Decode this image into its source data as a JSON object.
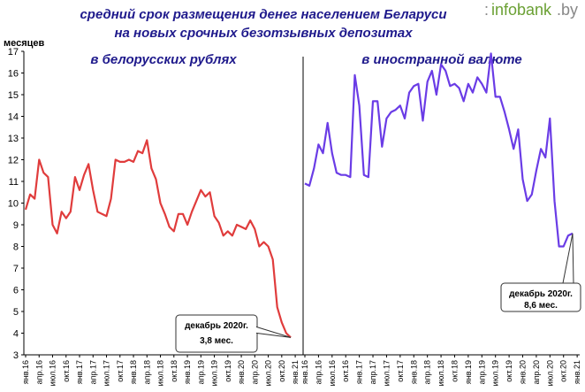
{
  "logo": {
    "name": "infobank",
    "suffix": ".by"
  },
  "title_line1": "средний срок размещения денег населением Беларуси",
  "title_line2": "на новых срочных безотзывных депозитах",
  "chart_data": {
    "type": "line",
    "ylabel": "месяцев",
    "ylim": [
      3,
      17
    ],
    "yticks": [
      3,
      4,
      5,
      6,
      7,
      8,
      9,
      10,
      11,
      12,
      13,
      14,
      15,
      16,
      17
    ],
    "x_tick_labels": [
      "янв.16",
      "апр.16",
      "июл.16",
      "окт.16",
      "янв.17",
      "апр.17",
      "июл.17",
      "окт.17",
      "янв.18",
      "апр.18",
      "июл.18",
      "окт.18",
      "янв.19",
      "апр.19",
      "июл.19",
      "окт.19",
      "янв.20",
      "апр.20",
      "июл.20",
      "окт.20",
      "янв.21"
    ],
    "x_start": "2016-01",
    "x_end": "2020-12",
    "series": [
      {
        "name": "в белорусских рублях",
        "color": "#e03c3c",
        "values": [
          9.7,
          10.4,
          10.2,
          12.0,
          11.4,
          11.2,
          9.0,
          8.6,
          9.6,
          9.3,
          9.6,
          11.2,
          10.6,
          11.3,
          11.8,
          10.6,
          9.6,
          9.5,
          9.4,
          10.2,
          12.0,
          11.9,
          11.9,
          12.0,
          11.9,
          12.4,
          12.3,
          12.9,
          11.6,
          11.1,
          10.0,
          9.5,
          8.9,
          8.7,
          9.5,
          9.5,
          9.0,
          9.6,
          10.1,
          10.6,
          10.3,
          10.5,
          9.4,
          9.1,
          8.5,
          8.7,
          8.5,
          9.0,
          8.9,
          8.8,
          9.2,
          8.8,
          8.0,
          8.2,
          8.0,
          7.4,
          5.2,
          4.5,
          4.0,
          3.8
        ]
      },
      {
        "name": "в иностранной валюте",
        "color": "#6a3ce6",
        "values": [
          10.9,
          10.8,
          11.6,
          12.7,
          12.3,
          13.7,
          12.3,
          11.4,
          11.3,
          11.3,
          11.2,
          15.9,
          14.5,
          11.3,
          11.2,
          14.7,
          14.7,
          12.6,
          13.9,
          14.2,
          14.3,
          14.5,
          13.9,
          15.1,
          15.4,
          15.5,
          13.8,
          15.6,
          16.1,
          15.0,
          16.4,
          16.1,
          15.4,
          15.5,
          15.3,
          14.7,
          15.5,
          15.1,
          15.8,
          15.5,
          15.1,
          16.9,
          14.9,
          14.9,
          14.2,
          13.4,
          12.5,
          13.4,
          11.1,
          10.1,
          10.4,
          11.5,
          12.5,
          12.1,
          13.9,
          10.1,
          8.0,
          8.0,
          8.5,
          8.6
        ]
      }
    ],
    "annotations": [
      {
        "series": 0,
        "line1": "декабрь 2020г.",
        "line2": "3,8 мес."
      },
      {
        "series": 1,
        "line1": "декабрь 2020г.",
        "line2": "8,6 мес."
      }
    ]
  }
}
